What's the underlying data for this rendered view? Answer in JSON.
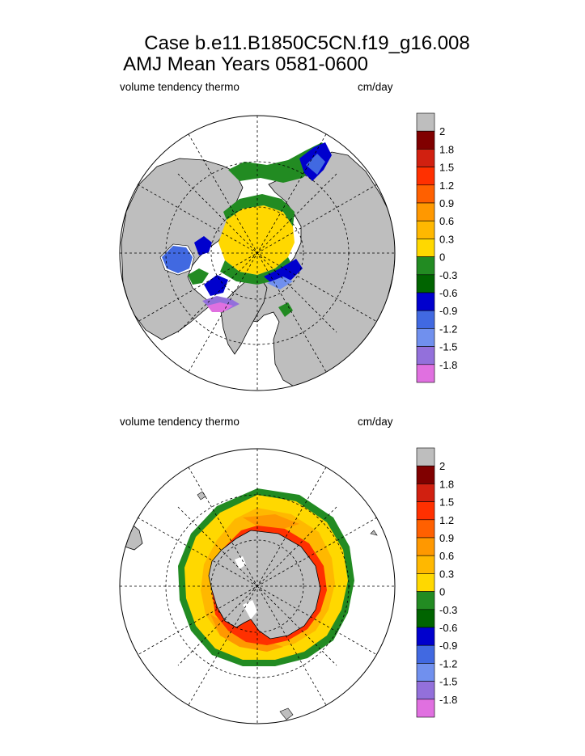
{
  "title_line1": "Case b.e11.B1850C5CN.f19_g16.008",
  "title_line2": "AMJ Mean   Years 0581-0600",
  "panels": [
    {
      "variable": "volume tendency thermo",
      "units": "cm/day",
      "hemisphere": "north"
    },
    {
      "variable": "volume tendency thermo",
      "units": "cm/day",
      "hemisphere": "south"
    }
  ],
  "chart_data": [
    {
      "type": "heatmap",
      "title": "volume tendency thermo",
      "units": "cm/day",
      "projection": "north polar stereographic",
      "colorbar_levels": [
        "2",
        "1.8",
        "1.5",
        "1.2",
        "0.9",
        "0.6",
        "0.3",
        "0",
        "-0.3",
        "-0.6",
        "-0.9",
        "-1.2",
        "-1.5",
        "-1.8"
      ]
    },
    {
      "type": "heatmap",
      "title": "volume tendency thermo",
      "units": "cm/day",
      "projection": "south polar stereographic",
      "colorbar_levels": [
        "2",
        "1.8",
        "1.5",
        "1.2",
        "0.9",
        "0.6",
        "0.3",
        "0",
        "-0.3",
        "-0.6",
        "-0.9",
        "-1.2",
        "-1.5",
        "-1.8"
      ]
    }
  ],
  "colorbar": {
    "land_color": "#bebebe",
    "colors": [
      "#800000",
      "#d12010",
      "#ff3000",
      "#ff6000",
      "#ff9800",
      "#ffb800",
      "#ffd800",
      "#228b22",
      "#006400",
      "#0000cd",
      "#4169e1",
      "#7090ee",
      "#9370db",
      "#e070e0"
    ]
  }
}
